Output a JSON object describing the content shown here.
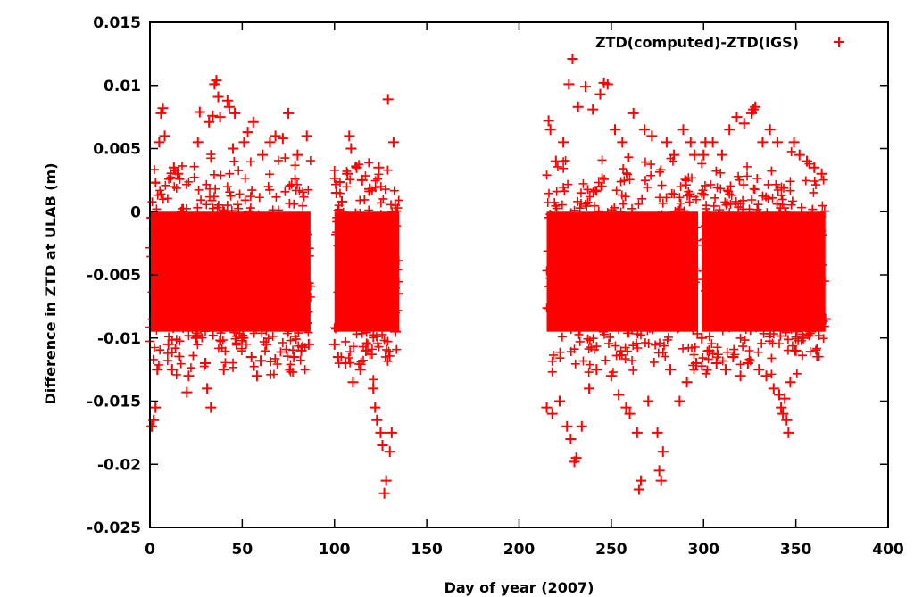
{
  "chart_data": {
    "type": "scatter",
    "title": "",
    "xlabel": "Day of year (2007)",
    "ylabel": "Difference in ZTD at ULAB (m)",
    "xlim": [
      0,
      400
    ],
    "ylim": [
      -0.025,
      0.015
    ],
    "x_ticks": [
      "0",
      "50",
      "100",
      "150",
      "200",
      "250",
      "300",
      "350",
      "400"
    ],
    "y_ticks": [
      "-0.025",
      "-0.02",
      "-0.015",
      "-0.01",
      "-0.005",
      "0",
      "0.005",
      "0.01",
      "0.015"
    ],
    "grid": false,
    "legend": {
      "position": "top-right",
      "marker": "+"
    },
    "series": [
      {
        "name": "ZTD(computed)-ZTD(IGS)",
        "color": "#ff0000",
        "marker": "+",
        "coverage_days": [
          [
            0,
            87
          ],
          [
            100,
            135
          ],
          [
            215,
            297
          ],
          [
            299,
            366
          ]
        ],
        "points": [
          {
            "x": 1,
            "y": -0.017
          },
          {
            "x": 2,
            "y": -0.0165
          },
          {
            "x": 3,
            "y": -0.0155
          },
          {
            "x": 4,
            "y": -0.0125
          },
          {
            "x": 5,
            "y": 0.0055
          },
          {
            "x": 6,
            "y": 0.0078
          },
          {
            "x": 7,
            "y": 0.0082
          },
          {
            "x": 8,
            "y": 0.006
          },
          {
            "x": 10,
            "y": -0.0105
          },
          {
            "x": 12,
            "y": -0.0125
          },
          {
            "x": 13,
            "y": 0.0035
          },
          {
            "x": 15,
            "y": 0.003
          },
          {
            "x": 20,
            "y": -0.0143
          },
          {
            "x": 21,
            "y": -0.013
          },
          {
            "x": 25,
            "y": -0.01
          },
          {
            "x": 26,
            "y": 0.0055
          },
          {
            "x": 27,
            "y": 0.0079
          },
          {
            "x": 30,
            "y": -0.012
          },
          {
            "x": 31,
            "y": -0.014
          },
          {
            "x": 32,
            "y": 0.0071
          },
          {
            "x": 33,
            "y": -0.0155
          },
          {
            "x": 34,
            "y": 0.0076
          },
          {
            "x": 35,
            "y": 0.0101
          },
          {
            "x": 36,
            "y": 0.0104
          },
          {
            "x": 37,
            "y": 0.0091
          },
          {
            "x": 38,
            "y": 0.0075
          },
          {
            "x": 40,
            "y": -0.0125
          },
          {
            "x": 42,
            "y": 0.0088
          },
          {
            "x": 43,
            "y": 0.0083
          },
          {
            "x": 45,
            "y": 0.005
          },
          {
            "x": 46,
            "y": 0.0078
          },
          {
            "x": 50,
            "y": -0.01
          },
          {
            "x": 51,
            "y": 0.0055
          },
          {
            "x": 53,
            "y": 0.0063
          },
          {
            "x": 55,
            "y": -0.0115
          },
          {
            "x": 56,
            "y": 0.0071
          },
          {
            "x": 58,
            "y": -0.013
          },
          {
            "x": 60,
            "y": -0.0118
          },
          {
            "x": 61,
            "y": 0.0045
          },
          {
            "x": 63,
            "y": -0.0105
          },
          {
            "x": 65,
            "y": 0.0055
          },
          {
            "x": 68,
            "y": 0.006
          },
          {
            "x": 70,
            "y": -0.007
          },
          {
            "x": 72,
            "y": 0.0058
          },
          {
            "x": 75,
            "y": 0.0078
          },
          {
            "x": 78,
            "y": -0.0115
          },
          {
            "x": 80,
            "y": 0.0045
          },
          {
            "x": 82,
            "y": -0.011
          },
          {
            "x": 85,
            "y": 0.006
          },
          {
            "x": 86,
            "y": -0.0105
          },
          {
            "x": 100,
            "y": -0.0105
          },
          {
            "x": 101,
            "y": 0.0015
          },
          {
            "x": 102,
            "y": -0.0115
          },
          {
            "x": 104,
            "y": 0.0008
          },
          {
            "x": 106,
            "y": -0.012
          },
          {
            "x": 107,
            "y": 0.003
          },
          {
            "x": 108,
            "y": 0.006
          },
          {
            "x": 109,
            "y": 0.005
          },
          {
            "x": 110,
            "y": -0.0135
          },
          {
            "x": 112,
            "y": 0.0035
          },
          {
            "x": 114,
            "y": -0.0125
          },
          {
            "x": 115,
            "y": 0.0025
          },
          {
            "x": 117,
            "y": -0.011
          },
          {
            "x": 119,
            "y": 0.0018
          },
          {
            "x": 121,
            "y": -0.014
          },
          {
            "x": 122,
            "y": -0.0155
          },
          {
            "x": 123,
            "y": -0.0165
          },
          {
            "x": 124,
            "y": 0.0035
          },
          {
            "x": 125,
            "y": -0.0175
          },
          {
            "x": 126,
            "y": -0.0185
          },
          {
            "x": 127,
            "y": -0.0223
          },
          {
            "x": 128,
            "y": -0.0213
          },
          {
            "x": 129,
            "y": 0.0089
          },
          {
            "x": 130,
            "y": -0.019
          },
          {
            "x": 131,
            "y": -0.0175
          },
          {
            "x": 132,
            "y": 0.0055
          },
          {
            "x": 133,
            "y": -0.0095
          },
          {
            "x": 134,
            "y": -0.0065
          },
          {
            "x": 215,
            "y": -0.0155
          },
          {
            "x": 216,
            "y": 0.0072
          },
          {
            "x": 217,
            "y": 0.0065
          },
          {
            "x": 218,
            "y": -0.016
          },
          {
            "x": 220,
            "y": 0.004
          },
          {
            "x": 222,
            "y": -0.015
          },
          {
            "x": 224,
            "y": 0.0055
          },
          {
            "x": 226,
            "y": -0.017
          },
          {
            "x": 227,
            "y": 0.0101
          },
          {
            "x": 228,
            "y": -0.018
          },
          {
            "x": 229,
            "y": 0.0121
          },
          {
            "x": 230,
            "y": -0.0198
          },
          {
            "x": 231,
            "y": -0.0195
          },
          {
            "x": 232,
            "y": 0.0083
          },
          {
            "x": 234,
            "y": -0.017
          },
          {
            "x": 236,
            "y": 0.0099
          },
          {
            "x": 238,
            "y": -0.014
          },
          {
            "x": 240,
            "y": 0.0081
          },
          {
            "x": 242,
            "y": -0.0125
          },
          {
            "x": 244,
            "y": 0.0093
          },
          {
            "x": 246,
            "y": 0.0102
          },
          {
            "x": 248,
            "y": 0.0101
          },
          {
            "x": 250,
            "y": -0.013
          },
          {
            "x": 252,
            "y": 0.0065
          },
          {
            "x": 254,
            "y": -0.0145
          },
          {
            "x": 256,
            "y": 0.0055
          },
          {
            "x": 258,
            "y": -0.0155
          },
          {
            "x": 260,
            "y": -0.016
          },
          {
            "x": 262,
            "y": 0.0078
          },
          {
            "x": 264,
            "y": -0.0175
          },
          {
            "x": 265,
            "y": -0.022
          },
          {
            "x": 266,
            "y": -0.0213
          },
          {
            "x": 268,
            "y": 0.0065
          },
          {
            "x": 270,
            "y": -0.015
          },
          {
            "x": 272,
            "y": 0.006
          },
          {
            "x": 275,
            "y": -0.0175
          },
          {
            "x": 276,
            "y": -0.0205
          },
          {
            "x": 277,
            "y": -0.0213
          },
          {
            "x": 278,
            "y": -0.019
          },
          {
            "x": 280,
            "y": 0.0055
          },
          {
            "x": 282,
            "y": -0.0125
          },
          {
            "x": 284,
            "y": 0.0045
          },
          {
            "x": 287,
            "y": -0.015
          },
          {
            "x": 289,
            "y": 0.0065
          },
          {
            "x": 291,
            "y": -0.0135
          },
          {
            "x": 293,
            "y": 0.0055
          },
          {
            "x": 295,
            "y": 0.0045
          },
          {
            "x": 296,
            "y": -0.012
          },
          {
            "x": 299,
            "y": -0.01
          },
          {
            "x": 300,
            "y": 0.0045
          },
          {
            "x": 301,
            "y": 0.0055
          },
          {
            "x": 303,
            "y": -0.011
          },
          {
            "x": 305,
            "y": 0.0055
          },
          {
            "x": 307,
            "y": -0.012
          },
          {
            "x": 310,
            "y": 0.0045
          },
          {
            "x": 312,
            "y": -0.0125
          },
          {
            "x": 314,
            "y": 0.0065
          },
          {
            "x": 316,
            "y": -0.0115
          },
          {
            "x": 318,
            "y": 0.0075
          },
          {
            "x": 320,
            "y": -0.013
          },
          {
            "x": 322,
            "y": 0.007
          },
          {
            "x": 324,
            "y": -0.012
          },
          {
            "x": 326,
            "y": 0.0078
          },
          {
            "x": 327,
            "y": 0.0081
          },
          {
            "x": 328,
            "y": 0.0083
          },
          {
            "x": 330,
            "y": -0.0125
          },
          {
            "x": 332,
            "y": 0.0055
          },
          {
            "x": 334,
            "y": -0.013
          },
          {
            "x": 336,
            "y": 0.0065
          },
          {
            "x": 338,
            "y": -0.014
          },
          {
            "x": 340,
            "y": 0.0055
          },
          {
            "x": 341,
            "y": -0.0145
          },
          {
            "x": 342,
            "y": -0.0155
          },
          {
            "x": 343,
            "y": -0.016
          },
          {
            "x": 344,
            "y": -0.0148
          },
          {
            "x": 345,
            "y": -0.0165
          },
          {
            "x": 346,
            "y": -0.0175
          },
          {
            "x": 347,
            "y": -0.0135
          },
          {
            "x": 349,
            "y": 0.0055
          },
          {
            "x": 350,
            "y": -0.011
          },
          {
            "x": 352,
            "y": 0.0045
          },
          {
            "x": 354,
            "y": -0.01
          },
          {
            "x": 356,
            "y": 0.004
          },
          {
            "x": 358,
            "y": -0.0095
          },
          {
            "x": 360,
            "y": 0.0035
          },
          {
            "x": 362,
            "y": -0.008
          },
          {
            "x": 364,
            "y": 0.003
          },
          {
            "x": 366,
            "y": -0.0085
          }
        ]
      }
    ]
  }
}
